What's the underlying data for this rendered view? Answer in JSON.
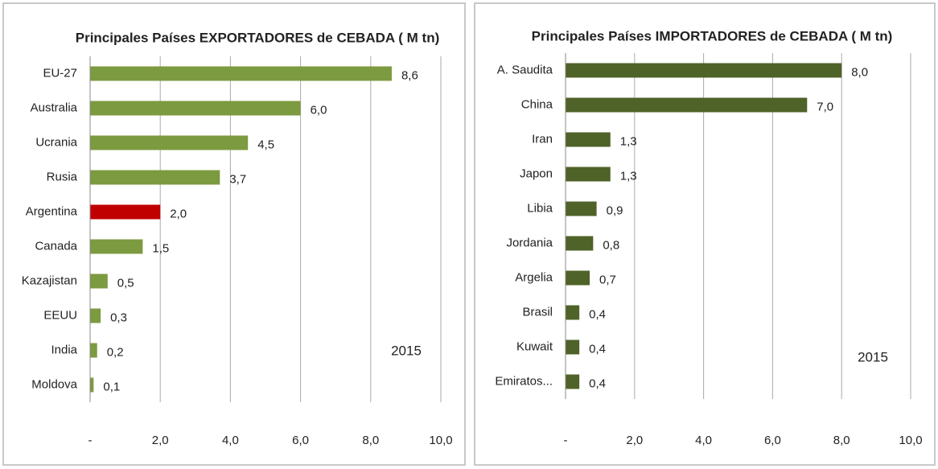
{
  "chart_data": [
    {
      "type": "bar",
      "orientation": "horizontal",
      "title": "Principales Países EXPORTADORES de CEBADA ( M tn)",
      "categories": [
        "EU-27",
        "Australia",
        "Ucrania",
        "Rusia",
        "Argentina",
        "Canada",
        "Kazajistan",
        "EEUU",
        "India",
        "Moldova"
      ],
      "values": [
        8.6,
        6.0,
        4.5,
        3.7,
        2.0,
        1.5,
        0.5,
        0.3,
        0.2,
        0.1
      ],
      "value_labels": [
        "8,6",
        "6,0",
        "4,5",
        "3,7",
        "2,0",
        "1,5",
        "0,5",
        "0,3",
        "0,2",
        "0,1"
      ],
      "colors": [
        "#7c9a3f",
        "#7c9a3f",
        "#7c9a3f",
        "#7c9a3f",
        "#c00000",
        "#7c9a3f",
        "#7c9a3f",
        "#7c9a3f",
        "#7c9a3f",
        "#7c9a3f"
      ],
      "xlim": [
        0,
        10
      ],
      "xticks": [
        {
          "value": 0,
          "label": "-"
        },
        {
          "value": 2,
          "label": "2,0"
        },
        {
          "value": 4,
          "label": "4,0"
        },
        {
          "value": 6,
          "label": "6,0"
        },
        {
          "value": 8,
          "label": "8,0"
        },
        {
          "value": 10,
          "label": "10,0"
        }
      ],
      "grid": true,
      "annotation": "2015"
    },
    {
      "type": "bar",
      "orientation": "horizontal",
      "title": "Principales Países IMPORTADORES de CEBADA ( M tn)",
      "categories": [
        "A. Saudita",
        "China",
        "Iran",
        "Japon",
        "Libia",
        "Jordania",
        "Argelia",
        "Brasil",
        "Kuwait",
        "Emiratos..."
      ],
      "values": [
        8.0,
        7.0,
        1.3,
        1.3,
        0.9,
        0.8,
        0.7,
        0.4,
        0.4,
        0.4
      ],
      "value_labels": [
        "8,0",
        "7,0",
        "1,3",
        "1,3",
        "0,9",
        "0,8",
        "0,7",
        "0,4",
        "0,4",
        "0,4"
      ],
      "colors": [
        "#4f6228",
        "#4f6228",
        "#4f6228",
        "#4f6228",
        "#4f6228",
        "#4f6228",
        "#4f6228",
        "#4f6228",
        "#4f6228",
        "#4f6228"
      ],
      "xlim": [
        0,
        10
      ],
      "xticks": [
        {
          "value": 0,
          "label": "-"
        },
        {
          "value": 2,
          "label": "2,0"
        },
        {
          "value": 4,
          "label": "4,0"
        },
        {
          "value": 6,
          "label": "6,0"
        },
        {
          "value": 8,
          "label": "8,0"
        },
        {
          "value": 10,
          "label": "10,0"
        }
      ],
      "grid": true,
      "annotation": "2015"
    }
  ]
}
